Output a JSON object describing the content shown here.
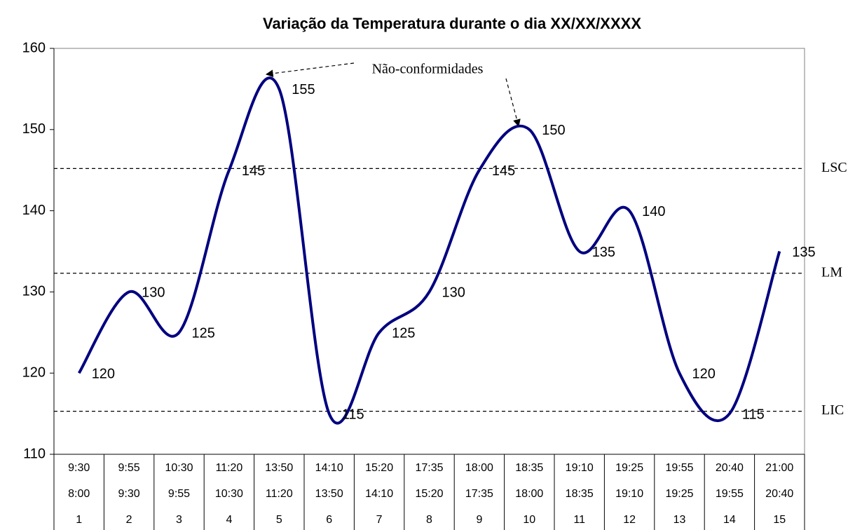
{
  "chart_data": {
    "type": "line",
    "title": "Variação da Temperatura durante o dia XX/XX/XXXX",
    "annotation": "Não-conformidades",
    "categories": [
      "1",
      "2",
      "3",
      "4",
      "5",
      "6",
      "7",
      "8",
      "9",
      "10",
      "11",
      "12",
      "13",
      "14",
      "15"
    ],
    "time_rows": [
      [
        "9:30",
        "9:55",
        "10:30",
        "11:20",
        "13:50",
        "14:10",
        "15:20",
        "17:35",
        "18:00",
        "18:35",
        "19:10",
        "19:25",
        "19:55",
        "20:40",
        "21:00"
      ],
      [
        "8:00",
        "9:30",
        "9:55",
        "10:30",
        "11:20",
        "13:50",
        "14:10",
        "15:20",
        "17:35",
        "18:00",
        "18:35",
        "19:10",
        "19:25",
        "19:55",
        "20:40"
      ]
    ],
    "series": [
      {
        "color": "#000080",
        "values": [
          120,
          130,
          125,
          145,
          155,
          115,
          125,
          130,
          145,
          150,
          135,
          140,
          120,
          115,
          135
        ]
      }
    ],
    "reference_lines": [
      {
        "label": "LSC",
        "value": 145.2
      },
      {
        "label": "LM",
        "value": 132.3
      },
      {
        "label": "LIC",
        "value": 115.3
      }
    ],
    "ylim": [
      110,
      160
    ],
    "yticks": [
      110,
      120,
      130,
      140,
      150,
      160
    ]
  }
}
